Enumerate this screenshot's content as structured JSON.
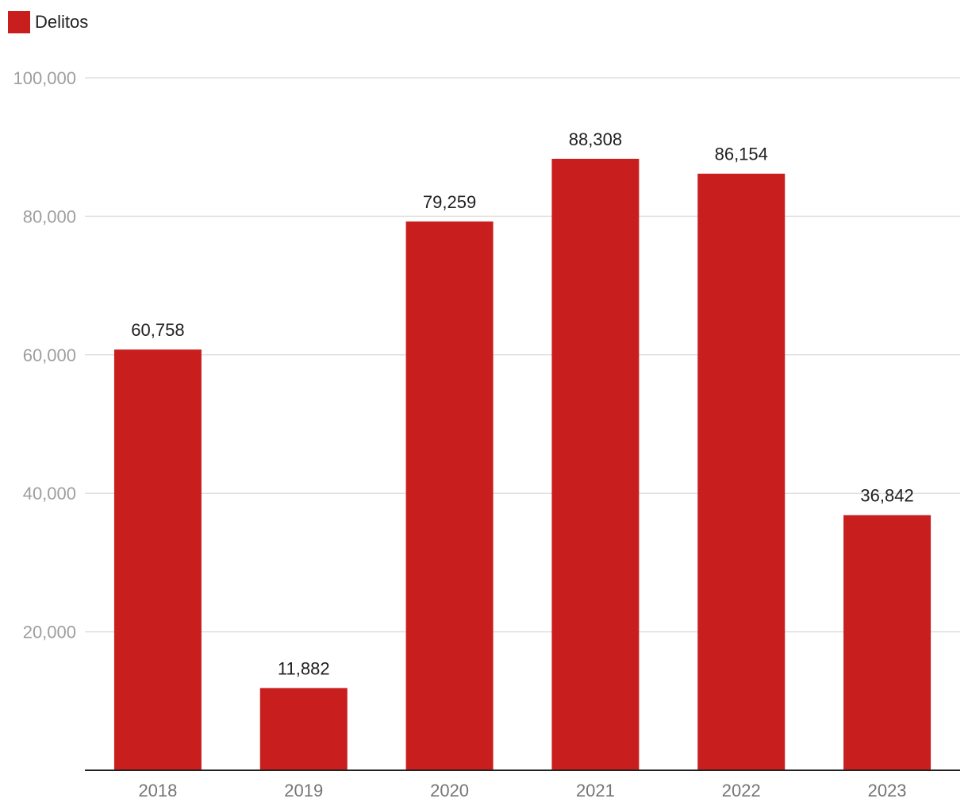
{
  "chart_data": {
    "type": "bar",
    "title": "",
    "xlabel": "",
    "ylabel": "",
    "categories": [
      "2018",
      "2019",
      "2020",
      "2021",
      "2022",
      "2023"
    ],
    "series": [
      {
        "name": "Delitos",
        "color": "#c81e1e",
        "values": [
          60758,
          11882,
          79259,
          88308,
          86154,
          36842
        ],
        "labels": [
          "60,758",
          "11,882",
          "79,259",
          "88,308",
          "86,154",
          "36,842"
        ]
      }
    ],
    "ylim": [
      0,
      100000
    ],
    "yticks": [
      20000,
      40000,
      60000,
      80000,
      100000
    ],
    "ytick_labels": [
      "20,000",
      "40,000",
      "60,000",
      "80,000",
      "100,000"
    ],
    "grid": true,
    "legend": "top-left"
  }
}
